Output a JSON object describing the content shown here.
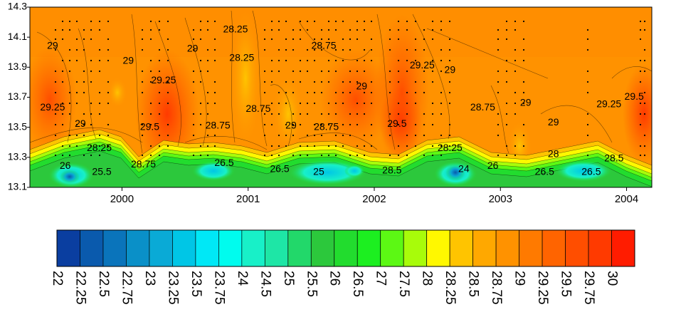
{
  "chart_data": {
    "type": "heatmap",
    "title": "",
    "xlabel": "",
    "ylabel": "",
    "x_ticks": [
      "2000",
      "2001",
      "2002",
      "2003",
      "2004"
    ],
    "x_tick_values": [
      2000,
      2001,
      2002,
      2003,
      2004
    ],
    "xlim": [
      1999.27,
      2004.2
    ],
    "y_ticks": [
      "13.1",
      "13.3",
      "13.5",
      "13.7",
      "13.9",
      "14.1",
      "14.3"
    ],
    "y_tick_values": [
      13.1,
      13.3,
      13.5,
      13.7,
      13.9,
      14.1,
      14.3
    ],
    "ylim": [
      13.1,
      14.3
    ],
    "contour_labels": [
      {
        "text": "29",
        "x": 1999.45,
        "y": 14.04
      },
      {
        "text": "29.25",
        "x": 1999.45,
        "y": 13.63
      },
      {
        "text": "29",
        "x": 1999.67,
        "y": 13.52
      },
      {
        "text": "28.25",
        "x": 1999.82,
        "y": 13.36
      },
      {
        "text": "26",
        "x": 1999.55,
        "y": 13.24
      },
      {
        "text": "25.5",
        "x": 1999.84,
        "y": 13.2
      },
      {
        "text": "29",
        "x": 2000.05,
        "y": 13.94
      },
      {
        "text": "29.25",
        "x": 2000.33,
        "y": 13.81
      },
      {
        "text": "29.5",
        "x": 2000.22,
        "y": 13.5
      },
      {
        "text": "28.75",
        "x": 2000.17,
        "y": 13.25
      },
      {
        "text": "29",
        "x": 2000.56,
        "y": 14.02
      },
      {
        "text": "28.75",
        "x": 2000.76,
        "y": 13.51
      },
      {
        "text": "26.5",
        "x": 2000.81,
        "y": 13.26
      },
      {
        "text": "28.25",
        "x": 2000.95,
        "y": 13.96
      },
      {
        "text": "28.25",
        "x": 2000.9,
        "y": 14.15
      },
      {
        "text": "28.75",
        "x": 2001.08,
        "y": 13.62
      },
      {
        "text": "29",
        "x": 2001.34,
        "y": 13.51
      },
      {
        "text": "28.75",
        "x": 2001.62,
        "y": 13.5
      },
      {
        "text": "26.5",
        "x": 2001.25,
        "y": 13.22
      },
      {
        "text": "25",
        "x": 2001.56,
        "y": 13.2
      },
      {
        "text": "28.75",
        "x": 2001.6,
        "y": 14.04
      },
      {
        "text": "29",
        "x": 2001.9,
        "y": 13.77
      },
      {
        "text": "29.25",
        "x": 2002.38,
        "y": 13.91
      },
      {
        "text": "29",
        "x": 2002.6,
        "y": 13.88
      },
      {
        "text": "29.5",
        "x": 2002.18,
        "y": 13.52
      },
      {
        "text": "28.5",
        "x": 2002.14,
        "y": 13.21
      },
      {
        "text": "28.25",
        "x": 2002.6,
        "y": 13.36
      },
      {
        "text": "24",
        "x": 2002.71,
        "y": 13.22
      },
      {
        "text": "28.75",
        "x": 2002.86,
        "y": 13.63
      },
      {
        "text": "29",
        "x": 2003.2,
        "y": 13.66
      },
      {
        "text": "29",
        "x": 2003.42,
        "y": 13.53
      },
      {
        "text": "28",
        "x": 2003.42,
        "y": 13.32
      },
      {
        "text": "26",
        "x": 2002.94,
        "y": 13.24
      },
      {
        "text": "26.5",
        "x": 2003.35,
        "y": 13.2
      },
      {
        "text": "26.5",
        "x": 2003.72,
        "y": 13.2
      },
      {
        "text": "28.5",
        "x": 2003.9,
        "y": 13.29
      },
      {
        "text": "29.25",
        "x": 2003.86,
        "y": 13.65
      },
      {
        "text": "29.5",
        "x": 2004.06,
        "y": 13.7
      }
    ],
    "colorbar": {
      "levels": [
        "22",
        "22.25",
        "22.5",
        "22.75",
        "23",
        "23.25",
        "23.5",
        "23.75",
        "24",
        "24.5",
        "25",
        "25.5",
        "26",
        "26.5",
        "27",
        "27.5",
        "28",
        "28.25",
        "28.5",
        "28.75",
        "29",
        "29.25",
        "29.5",
        "29.75",
        "30"
      ],
      "colors": [
        "#0a3ea0",
        "#0a5aad",
        "#0a74bb",
        "#0a90c8",
        "#0aaad6",
        "#00c6e6",
        "#00e8f6",
        "#00fcee",
        "#18f0c8",
        "#1ee6a6",
        "#22d86a",
        "#2cc83c",
        "#22dc2e",
        "#1cef20",
        "#5cf814",
        "#a8fc0a",
        "#fff800",
        "#ffc400",
        "#ffa800",
        "#ff9200",
        "#ff7a00",
        "#ff6400",
        "#ff4e00",
        "#ff3a00",
        "#ff1c00"
      ]
    },
    "grid": false,
    "legend": "bottom"
  }
}
